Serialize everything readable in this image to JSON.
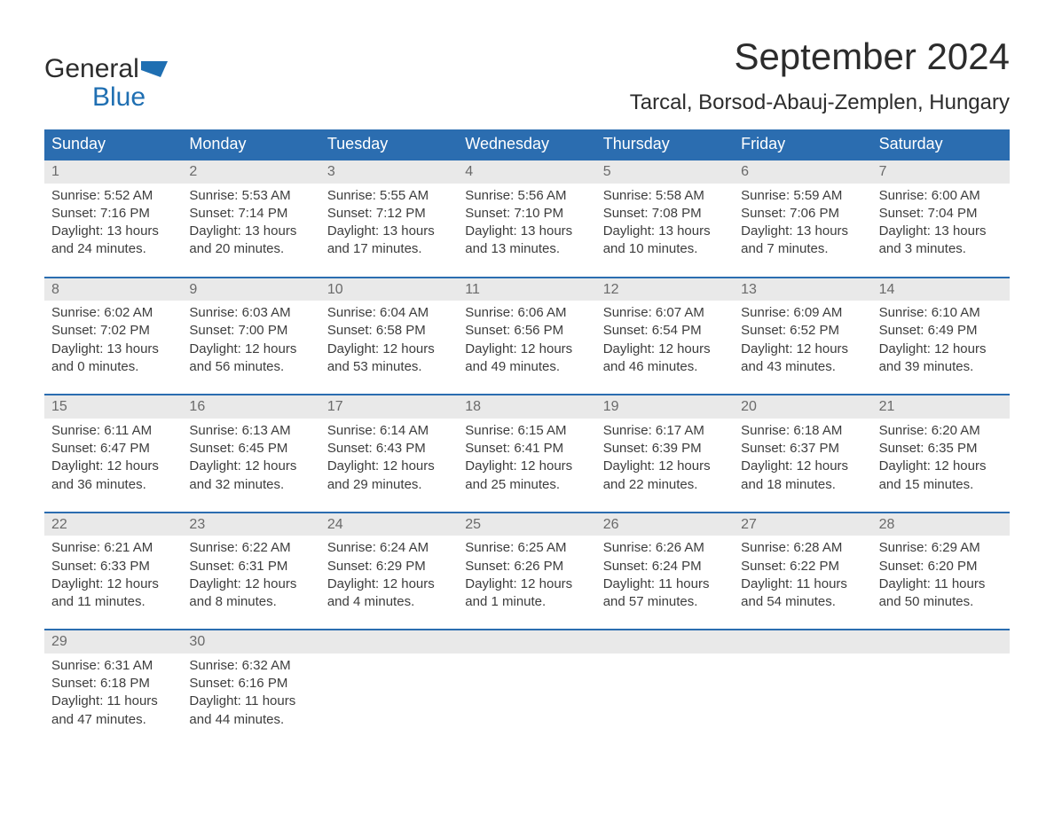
{
  "brand": {
    "word1": "General",
    "word2": "Blue"
  },
  "colors": {
    "brand_blue": "#1f6fb2",
    "header_bg": "#2b6db0",
    "header_text": "#ffffff",
    "daynum_bg": "#e9e9e9",
    "daynum_text": "#6a6a6a",
    "body_text": "#3d3d3d",
    "page_bg": "#ffffff",
    "week_border": "#2b6db0"
  },
  "fonts": {
    "title_pt": 42,
    "location_pt": 24,
    "dow_pt": 18,
    "body_pt": 15,
    "daynum_pt": 16,
    "logo_pt": 30
  },
  "title": "September 2024",
  "location": "Tarcal, Borsod-Abauj-Zemplen, Hungary",
  "days_of_week": [
    "Sunday",
    "Monday",
    "Tuesday",
    "Wednesday",
    "Thursday",
    "Friday",
    "Saturday"
  ],
  "layout": {
    "columns": 7,
    "weeks": 5
  },
  "weeks": [
    [
      {
        "n": "1",
        "sr": "Sunrise: 5:52 AM",
        "ss": "Sunset: 7:16 PM",
        "d1": "Daylight: 13 hours",
        "d2": "and 24 minutes."
      },
      {
        "n": "2",
        "sr": "Sunrise: 5:53 AM",
        "ss": "Sunset: 7:14 PM",
        "d1": "Daylight: 13 hours",
        "d2": "and 20 minutes."
      },
      {
        "n": "3",
        "sr": "Sunrise: 5:55 AM",
        "ss": "Sunset: 7:12 PM",
        "d1": "Daylight: 13 hours",
        "d2": "and 17 minutes."
      },
      {
        "n": "4",
        "sr": "Sunrise: 5:56 AM",
        "ss": "Sunset: 7:10 PM",
        "d1": "Daylight: 13 hours",
        "d2": "and 13 minutes."
      },
      {
        "n": "5",
        "sr": "Sunrise: 5:58 AM",
        "ss": "Sunset: 7:08 PM",
        "d1": "Daylight: 13 hours",
        "d2": "and 10 minutes."
      },
      {
        "n": "6",
        "sr": "Sunrise: 5:59 AM",
        "ss": "Sunset: 7:06 PM",
        "d1": "Daylight: 13 hours",
        "d2": "and 7 minutes."
      },
      {
        "n": "7",
        "sr": "Sunrise: 6:00 AM",
        "ss": "Sunset: 7:04 PM",
        "d1": "Daylight: 13 hours",
        "d2": "and 3 minutes."
      }
    ],
    [
      {
        "n": "8",
        "sr": "Sunrise: 6:02 AM",
        "ss": "Sunset: 7:02 PM",
        "d1": "Daylight: 13 hours",
        "d2": "and 0 minutes."
      },
      {
        "n": "9",
        "sr": "Sunrise: 6:03 AM",
        "ss": "Sunset: 7:00 PM",
        "d1": "Daylight: 12 hours",
        "d2": "and 56 minutes."
      },
      {
        "n": "10",
        "sr": "Sunrise: 6:04 AM",
        "ss": "Sunset: 6:58 PM",
        "d1": "Daylight: 12 hours",
        "d2": "and 53 minutes."
      },
      {
        "n": "11",
        "sr": "Sunrise: 6:06 AM",
        "ss": "Sunset: 6:56 PM",
        "d1": "Daylight: 12 hours",
        "d2": "and 49 minutes."
      },
      {
        "n": "12",
        "sr": "Sunrise: 6:07 AM",
        "ss": "Sunset: 6:54 PM",
        "d1": "Daylight: 12 hours",
        "d2": "and 46 minutes."
      },
      {
        "n": "13",
        "sr": "Sunrise: 6:09 AM",
        "ss": "Sunset: 6:52 PM",
        "d1": "Daylight: 12 hours",
        "d2": "and 43 minutes."
      },
      {
        "n": "14",
        "sr": "Sunrise: 6:10 AM",
        "ss": "Sunset: 6:49 PM",
        "d1": "Daylight: 12 hours",
        "d2": "and 39 minutes."
      }
    ],
    [
      {
        "n": "15",
        "sr": "Sunrise: 6:11 AM",
        "ss": "Sunset: 6:47 PM",
        "d1": "Daylight: 12 hours",
        "d2": "and 36 minutes."
      },
      {
        "n": "16",
        "sr": "Sunrise: 6:13 AM",
        "ss": "Sunset: 6:45 PM",
        "d1": "Daylight: 12 hours",
        "d2": "and 32 minutes."
      },
      {
        "n": "17",
        "sr": "Sunrise: 6:14 AM",
        "ss": "Sunset: 6:43 PM",
        "d1": "Daylight: 12 hours",
        "d2": "and 29 minutes."
      },
      {
        "n": "18",
        "sr": "Sunrise: 6:15 AM",
        "ss": "Sunset: 6:41 PM",
        "d1": "Daylight: 12 hours",
        "d2": "and 25 minutes."
      },
      {
        "n": "19",
        "sr": "Sunrise: 6:17 AM",
        "ss": "Sunset: 6:39 PM",
        "d1": "Daylight: 12 hours",
        "d2": "and 22 minutes."
      },
      {
        "n": "20",
        "sr": "Sunrise: 6:18 AM",
        "ss": "Sunset: 6:37 PM",
        "d1": "Daylight: 12 hours",
        "d2": "and 18 minutes."
      },
      {
        "n": "21",
        "sr": "Sunrise: 6:20 AM",
        "ss": "Sunset: 6:35 PM",
        "d1": "Daylight: 12 hours",
        "d2": "and 15 minutes."
      }
    ],
    [
      {
        "n": "22",
        "sr": "Sunrise: 6:21 AM",
        "ss": "Sunset: 6:33 PM",
        "d1": "Daylight: 12 hours",
        "d2": "and 11 minutes."
      },
      {
        "n": "23",
        "sr": "Sunrise: 6:22 AM",
        "ss": "Sunset: 6:31 PM",
        "d1": "Daylight: 12 hours",
        "d2": "and 8 minutes."
      },
      {
        "n": "24",
        "sr": "Sunrise: 6:24 AM",
        "ss": "Sunset: 6:29 PM",
        "d1": "Daylight: 12 hours",
        "d2": "and 4 minutes."
      },
      {
        "n": "25",
        "sr": "Sunrise: 6:25 AM",
        "ss": "Sunset: 6:26 PM",
        "d1": "Daylight: 12 hours",
        "d2": "and 1 minute."
      },
      {
        "n": "26",
        "sr": "Sunrise: 6:26 AM",
        "ss": "Sunset: 6:24 PM",
        "d1": "Daylight: 11 hours",
        "d2": "and 57 minutes."
      },
      {
        "n": "27",
        "sr": "Sunrise: 6:28 AM",
        "ss": "Sunset: 6:22 PM",
        "d1": "Daylight: 11 hours",
        "d2": "and 54 minutes."
      },
      {
        "n": "28",
        "sr": "Sunrise: 6:29 AM",
        "ss": "Sunset: 6:20 PM",
        "d1": "Daylight: 11 hours",
        "d2": "and 50 minutes."
      }
    ],
    [
      {
        "n": "29",
        "sr": "Sunrise: 6:31 AM",
        "ss": "Sunset: 6:18 PM",
        "d1": "Daylight: 11 hours",
        "d2": "and 47 minutes."
      },
      {
        "n": "30",
        "sr": "Sunrise: 6:32 AM",
        "ss": "Sunset: 6:16 PM",
        "d1": "Daylight: 11 hours",
        "d2": "and 44 minutes."
      },
      {
        "empty": true
      },
      {
        "empty": true
      },
      {
        "empty": true
      },
      {
        "empty": true
      },
      {
        "empty": true
      }
    ]
  ]
}
